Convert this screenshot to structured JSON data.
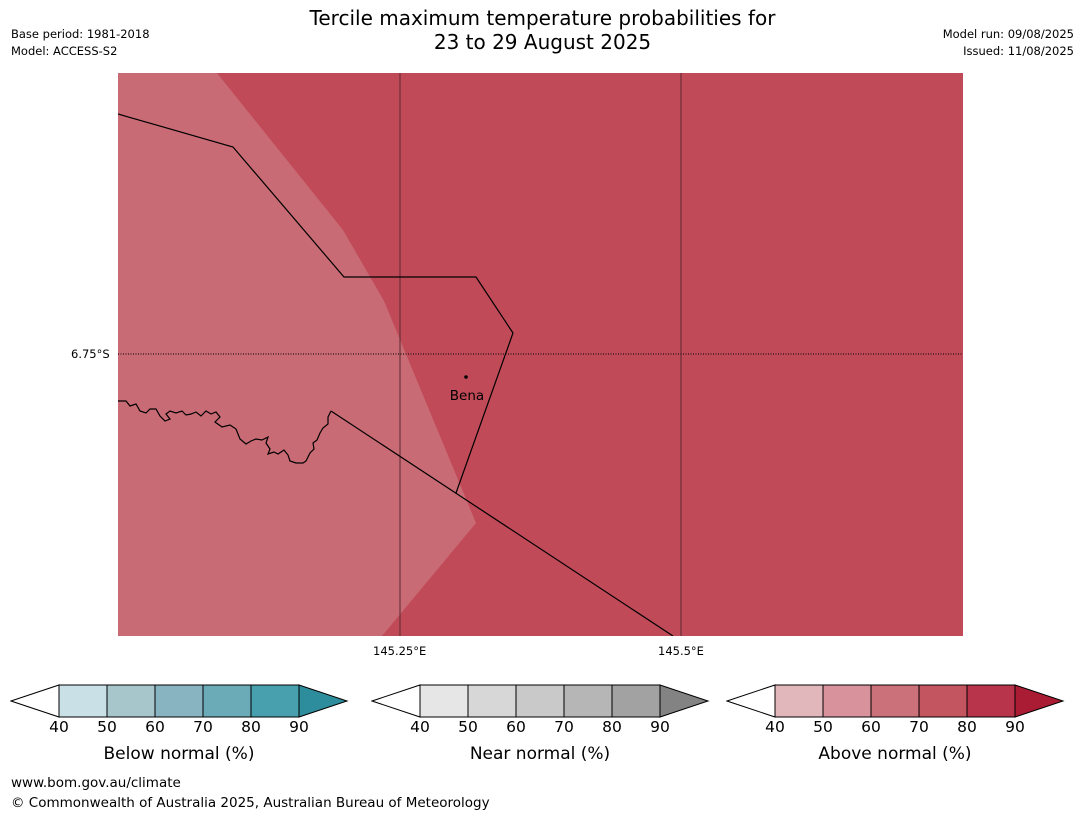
{
  "header": {
    "title_line1": "Tercile maximum temperature probabilities for",
    "title_line2": "23 to 29 August 2025",
    "base_period": "Base period: 1981-2018",
    "model": "Model: ACCESS-S2",
    "model_run": "Model run: 09/08/2025",
    "issued": "Issued: 11/08/2025"
  },
  "map": {
    "latitude_label": "6.75°S",
    "longitude_labels": [
      "145.25°E",
      "145.5°E"
    ],
    "place_name": "Bena",
    "colors": {
      "above_60_70": "#c96b74",
      "above_70_80": "#c04a58",
      "border": "#000000"
    }
  },
  "colorbars": [
    {
      "title": "Below normal (%)",
      "ticks": [
        "40",
        "50",
        "60",
        "70",
        "80",
        "90"
      ],
      "colors": [
        "#c9e0e6",
        "#a7c6cc",
        "#88b3c1",
        "#6babb8",
        "#48a0ae",
        "#2e8d9c"
      ]
    },
    {
      "title": "Near normal (%)",
      "ticks": [
        "40",
        "50",
        "60",
        "70",
        "80",
        "90"
      ],
      "colors": [
        "#e6e6e6",
        "#d7d7d7",
        "#c9c9c9",
        "#b6b6b6",
        "#a2a2a2",
        "#838383"
      ]
    },
    {
      "title": "Above normal (%)",
      "ticks": [
        "40",
        "50",
        "60",
        "70",
        "80",
        "90"
      ],
      "colors": [
        "#e2b7bc",
        "#d7929b",
        "#cb7179",
        "#c35560",
        "#b8344a",
        "#aa1c33"
      ]
    }
  ],
  "footer": {
    "url": "www.bom.gov.au/climate",
    "copyright": "© Commonwealth of Australia 2025, Australian Bureau of Meteorology"
  }
}
